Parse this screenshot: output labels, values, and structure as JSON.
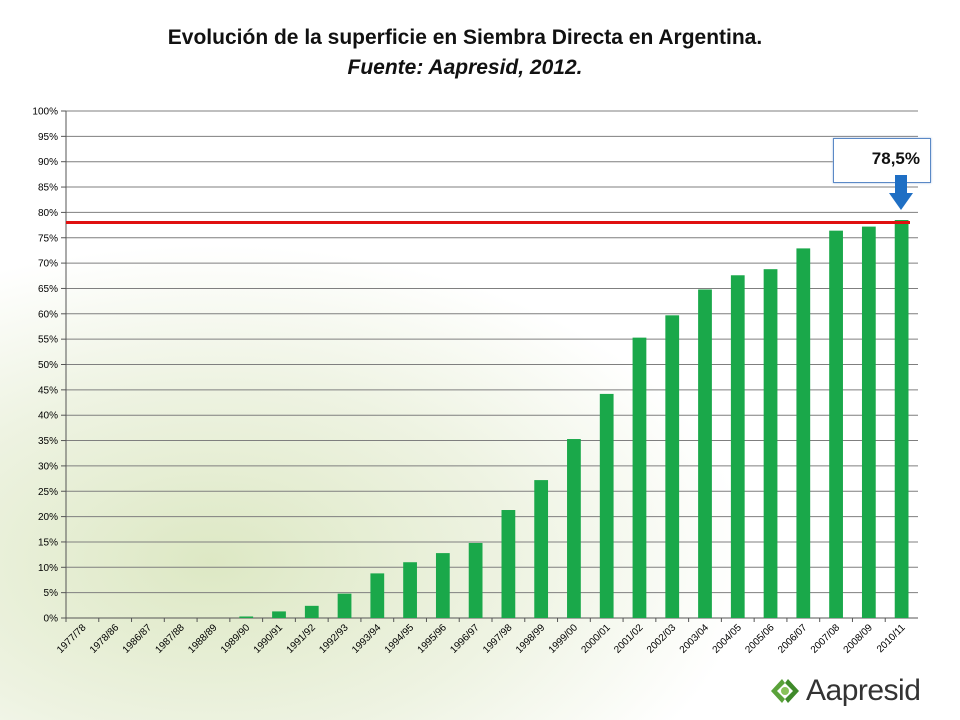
{
  "chart_data": {
    "type": "bar",
    "title": "Evolución de la superficie en Siembra Directa en Argentina.",
    "subtitle": "Fuente: Aapresid, 2012.",
    "categories": [
      "1977/78",
      "1978/86",
      "1986/87",
      "1987/88",
      "1988/89",
      "1989/90",
      "1990/91",
      "1991/92",
      "1992/93",
      "1993/94",
      "1994/95",
      "1995/96",
      "1996/97",
      "1997/98",
      "1998/99",
      "1999/00",
      "2000/01",
      "2001/02",
      "2002/03",
      "2003/04",
      "2004/05",
      "2005/06",
      "2006/07",
      "2007/08",
      "2008/09",
      "2010/11"
    ],
    "values": [
      0,
      0,
      0,
      0,
      0,
      0.3,
      1.3,
      2.4,
      4.8,
      8.8,
      11,
      12.8,
      14.8,
      21.3,
      27.2,
      35.3,
      44.2,
      55.3,
      59.7,
      64.8,
      67.6,
      68.8,
      72.9,
      76.4,
      77.2,
      78.5
    ],
    "ylim": [
      0,
      100
    ],
    "ytick_step": 5,
    "ytick_labels": [
      "0%",
      "5%",
      "10%",
      "15%",
      "20%",
      "25%",
      "30%",
      "35%",
      "40%",
      "45%",
      "50%",
      "55%",
      "60%",
      "65%",
      "70%",
      "75%",
      "80%",
      "85%",
      "90%",
      "95%",
      "100%"
    ],
    "reference_line": 78,
    "bar_color": "#1aa84a",
    "reference_line_color": "#e01010",
    "grid": true,
    "annotation": {
      "text": "78,5%",
      "target_category": "2010/11"
    }
  },
  "logo": {
    "text": "Aapresid",
    "icon": "aapresid-leaf-icon"
  }
}
